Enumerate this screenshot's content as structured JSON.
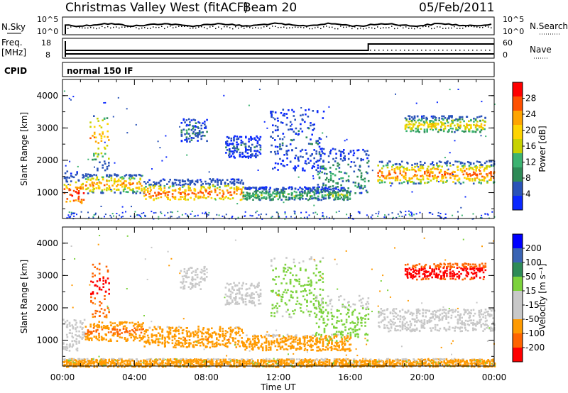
{
  "header": {
    "title": "Christmas Valley West (fitACF)",
    "beam": "Beam 20",
    "date": "05/Feb/2011"
  },
  "left_labels": {
    "nsky": "N.Sky",
    "freq": "Freq.",
    "freq_unit": "[MHz]",
    "cpid": "CPID"
  },
  "right_labels": {
    "nsearch": "N.Search",
    "nave": "Nave"
  },
  "cpid_text": "normal 150 IF",
  "colors": {
    "power": [
      "#0a28ff",
      "#2a53b8",
      "#2e8b57",
      "#3cb371",
      "#c8d200",
      "#ffd400",
      "#ffa500",
      "#ff5000",
      "#ff0000"
    ],
    "velocity": [
      "#0000ff",
      "#3a64b4",
      "#2e8b57",
      "#7cd23c",
      "#c8c8c8",
      "#c8c8c8",
      "#ff9a00",
      "#ff6400",
      "#ff0000"
    ]
  },
  "chart_data": [
    {
      "type": "line",
      "name": "noise-panel",
      "left_label": "N.Sky",
      "right_label": "N.Search",
      "yticks_left": [
        "10^5",
        "10^0"
      ],
      "yticks_right": [
        "10^5",
        "10^0"
      ]
    },
    {
      "type": "line",
      "name": "frequency-panel",
      "left_label": "Freq. [MHz]",
      "right_label": "Nave",
      "yticks_left": [
        18,
        8
      ],
      "yticks_right": [
        60,
        0
      ],
      "nave_step": {
        "before": 23,
        "after": 45,
        "at_hour": 17.0
      }
    },
    {
      "type": "heatmap",
      "name": "power",
      "ylabel": "Slant Range [km]",
      "colorbar_label": "Power [dB]",
      "colorbar_ticks": [
        4,
        8,
        12,
        16,
        20,
        24,
        28
      ],
      "ylim": [
        200,
        4500
      ],
      "yticks": [
        1000,
        2000,
        3000,
        4000
      ],
      "xlim": [
        0,
        24
      ],
      "xlabel": "Time UT",
      "xticks": [
        "00:00",
        "04:00",
        "08:00",
        "12:00",
        "16:00",
        "20:00",
        "00:00"
      ],
      "features": [
        {
          "t0": 0.0,
          "t1": 1.2,
          "r0": 700,
          "r1": 1700,
          "center": 950,
          "level": 28
        },
        {
          "t0": 1.2,
          "t1": 4.5,
          "r0": 1000,
          "r1": 1600,
          "center": 1280,
          "level": 22
        },
        {
          "t0": 4.5,
          "t1": 10.0,
          "r0": 800,
          "r1": 1450,
          "center": 1000,
          "level": 24
        },
        {
          "t0": 10.0,
          "t1": 16.0,
          "r0": 800,
          "r1": 1200,
          "center": 950,
          "level": 12
        },
        {
          "t0": 1.5,
          "t1": 2.6,
          "r0": 1700,
          "r1": 3400,
          "center": 2700,
          "level": 20
        },
        {
          "t0": 6.5,
          "t1": 8.0,
          "r0": 2600,
          "r1": 3300,
          "center": 2900,
          "level": 8
        },
        {
          "t0": 9.0,
          "t1": 11.0,
          "r0": 2100,
          "r1": 2800,
          "center": 2400,
          "level": 6
        },
        {
          "t0": 11.5,
          "t1": 14.5,
          "r0": 1700,
          "r1": 3600,
          "center": 2600,
          "level": 6
        },
        {
          "t0": 14.0,
          "t1": 17.0,
          "r0": 1000,
          "r1": 2400,
          "center": 1500,
          "level": 10
        },
        {
          "t0": 17.5,
          "t1": 24.0,
          "r0": 1300,
          "r1": 2000,
          "center": 1600,
          "level": 24
        },
        {
          "t0": 19.0,
          "t1": 23.5,
          "r0": 2900,
          "r1": 3400,
          "center": 3100,
          "level": 18
        }
      ]
    },
    {
      "type": "heatmap",
      "name": "velocity",
      "ylabel": "Slant Range [km]",
      "colorbar_label": "Velocity [m s⁻¹]",
      "colorbar_ticks": [
        200,
        100,
        50,
        15,
        -15,
        -50,
        -100,
        -200
      ],
      "ylim": [
        200,
        4500
      ],
      "yticks": [
        1000,
        2000,
        3000,
        4000
      ],
      "xlim": [
        0,
        24
      ],
      "xlabel": "Time UT",
      "xticks": [
        "00:00",
        "04:00",
        "08:00",
        "12:00",
        "16:00",
        "20:00",
        "00:00"
      ],
      "features": [
        {
          "t0": 0.0,
          "t1": 1.2,
          "r0": 700,
          "r1": 1700,
          "center": 1000,
          "level": 0
        },
        {
          "t0": 1.2,
          "t1": 4.5,
          "r0": 1000,
          "r1": 1600,
          "center": 1300,
          "level": -60
        },
        {
          "t0": 4.5,
          "t1": 10.0,
          "r0": 800,
          "r1": 1450,
          "center": 1050,
          "level": -50
        },
        {
          "t0": 10.0,
          "t1": 16.0,
          "r0": 700,
          "r1": 1200,
          "center": 900,
          "level": -40
        },
        {
          "t0": 1.5,
          "t1": 2.6,
          "r0": 1700,
          "r1": 3400,
          "center": 2700,
          "level": -150
        },
        {
          "t0": 6.5,
          "t1": 8.0,
          "r0": 2600,
          "r1": 3300,
          "center": 2900,
          "level": 0
        },
        {
          "t0": 9.0,
          "t1": 11.0,
          "r0": 2100,
          "r1": 2800,
          "center": 2400,
          "level": 0
        },
        {
          "t0": 11.5,
          "t1": 14.5,
          "r0": 1700,
          "r1": 3600,
          "center": 2600,
          "level": 30
        },
        {
          "t0": 14.0,
          "t1": 17.0,
          "r0": 1000,
          "r1": 2400,
          "center": 1500,
          "level": 30
        },
        {
          "t0": 17.5,
          "t1": 24.0,
          "r0": 1300,
          "r1": 2000,
          "center": 1600,
          "level": 0
        },
        {
          "t0": 19.0,
          "t1": 23.5,
          "r0": 2900,
          "r1": 3400,
          "center": 3100,
          "level": -200
        },
        {
          "t0": 0.0,
          "t1": 24.0,
          "r0": 200,
          "r1": 450,
          "center": 300,
          "level": -40
        }
      ]
    }
  ]
}
